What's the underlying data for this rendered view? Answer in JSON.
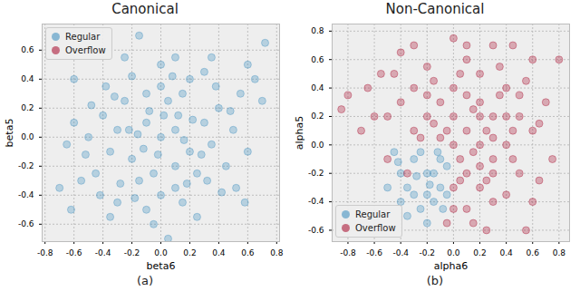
{
  "chart_data": [
    {
      "type": "scatter",
      "title": "Canonical",
      "caption": "(a)",
      "x_label": "beta6",
      "y_label": "beta5",
      "xlim": [
        -0.82,
        0.82
      ],
      "ylim": [
        -0.72,
        0.78
      ],
      "xticks": [
        -0.8,
        -0.6,
        -0.4,
        -0.2,
        {
          "value": 0,
          "label": "0.0"
        },
        0.2,
        0.4,
        0.6,
        0.8
      ],
      "yticks": [
        -0.6,
        -0.4,
        -0.2,
        {
          "value": 0,
          "label": "0.0"
        },
        0.2,
        0.4,
        0.6
      ],
      "grid": true,
      "legend": "upper left",
      "marker": "circle",
      "series": [
        {
          "name": "Regular",
          "color": "#348ABD",
          "x": [
            0.0,
            0.1,
            -0.1,
            0.2,
            -0.2,
            0.05,
            -0.05,
            0.3,
            -0.3,
            0.15,
            -0.15,
            0.25,
            -0.25,
            0.35,
            -0.35,
            0.0,
            0.0,
            0.4,
            -0.4,
            0.45,
            -0.45,
            0.2,
            -0.2,
            0.15,
            -0.1,
            0.5,
            -0.5,
            0.55,
            -0.55,
            0.3,
            -0.3,
            0.6,
            -0.6,
            0.1,
            -0.05,
            0.65,
            -0.65,
            0.7,
            -0.7,
            0.72,
            -0.15,
            0.05,
            0.1,
            -0.08,
            0.22,
            -0.28,
            0.38,
            -0.38,
            0.42,
            -0.42,
            0.12,
            -0.12,
            0.28,
            -0.22,
            0.18,
            -0.32,
            0.08,
            -0.18,
            0.48,
            -0.48,
            0.52,
            -0.52,
            0.35,
            -0.25,
            0.25,
            -0.35,
            0.6,
            -0.6,
            0.58,
            -0.62,
            0.0,
            0.02,
            -0.02,
            0.16,
            -0.16,
            0.32,
            -0.1,
            0.1
          ],
          "y": [
            0.0,
            0.05,
            0.1,
            -0.1,
            -0.15,
            0.25,
            -0.25,
            0.1,
            0.05,
            0.3,
            -0.3,
            -0.25,
            0.25,
            -0.05,
            -0.1,
            0.35,
            -0.4,
            0.2,
            0.15,
            -0.2,
            -0.25,
            0.4,
            0.42,
            -0.45,
            -0.5,
            0.05,
            0.0,
            0.3,
            -0.3,
            0.45,
            -0.45,
            -0.1,
            0.1,
            0.55,
            -0.6,
            0.4,
            -0.05,
            0.25,
            -0.35,
            0.65,
            0.7,
            -0.7,
            -0.2,
            0.18,
            0.12,
            -0.32,
            0.35,
            0.35,
            -0.38,
            -0.4,
            0.15,
            -0.08,
            -0.12,
            0.05,
            -0.32,
            0.28,
            0.42,
            -0.42,
            0.18,
            0.22,
            -0.35,
            -0.12,
            0.55,
            0.55,
            -0.55,
            -0.55,
            0.5,
            0.4,
            -0.45,
            -0.5,
            0.5,
            0.15,
            -0.12,
            -0.02,
            0.02,
            -0.3,
            0.3,
            -0.35
          ]
        },
        {
          "name": "Overflow",
          "color": "#A60628",
          "x": [],
          "y": []
        }
      ]
    },
    {
      "type": "scatter",
      "title": "Non-Canonical",
      "caption": "(b)",
      "x_label": "alpha6",
      "y_label": "alpha5",
      "xlim": [
        -0.92,
        0.88
      ],
      "ylim": [
        -0.68,
        0.85
      ],
      "xticks": [
        -0.8,
        -0.6,
        -0.4,
        -0.2,
        {
          "value": 0,
          "label": "0.0"
        },
        0.2,
        0.4,
        0.6,
        0.8
      ],
      "yticks": [
        -0.6,
        -0.4,
        -0.2,
        {
          "value": 0,
          "label": "0.0"
        },
        0.2,
        0.4,
        0.6,
        0.8
      ],
      "grid": true,
      "legend": "lower left",
      "marker": "circle",
      "series": [
        {
          "name": "Regular",
          "color": "#348ABD",
          "x": [
            -0.1,
            -0.2,
            -0.3,
            -0.1,
            -0.2,
            -0.35,
            -0.25,
            -0.4,
            -0.15,
            -0.05,
            -0.3,
            -0.15,
            -0.4,
            -0.05,
            -0.25,
            -0.45,
            -0.2,
            -0.35,
            -0.5,
            -0.12,
            -0.28,
            -0.08,
            -0.42,
            -0.18
          ],
          "y": [
            -0.1,
            -0.2,
            -0.1,
            -0.3,
            -0.35,
            -0.3,
            -0.45,
            -0.2,
            -0.2,
            -0.15,
            -0.35,
            -0.4,
            -0.4,
            -0.35,
            -0.05,
            -0.05,
            -0.55,
            -0.5,
            -0.3,
            -0.05,
            -0.22,
            -0.45,
            -0.12,
            -0.28
          ]
        },
        {
          "name": "Overflow",
          "color": "#A60628",
          "x": [
            0.0,
            0.1,
            0.2,
            0.0,
            0.3,
            0.2,
            -0.1,
            0.3,
            0.4,
            0.0,
            0.1,
            0.2,
            -0.2,
            -0.3,
            0.4,
            0.5,
            0.2,
            -0.3,
            0.5,
            0.3,
            0.1,
            -0.4,
            0.6,
            0.1,
            -0.2,
            0.55,
            0.4,
            0.15,
            -0.5,
            -0.55,
            -0.4,
            0.3,
            0.7,
            0.75,
            0.6,
            0.0,
            0.05,
            -0.05,
            0.25,
            0.15,
            -0.15,
            0.35,
            0.45,
            0.1,
            0.05,
            0.3,
            -0.25,
            -0.1,
            0.2,
            0.45,
            0.6,
            0.0,
            -0.8,
            -0.85,
            -0.65,
            -0.7,
            0.8,
            0.55,
            0.25,
            -0.05,
            0.65,
            -0.3,
            0.45,
            0.1,
            -0.45,
            0.35,
            0.5,
            -0.6,
            0.0,
            -0.15,
            0.15,
            0.25,
            0.4,
            0.2,
            -0.35,
            -0.5,
            0.65,
            -0.2,
            0.05,
            0.3
          ],
          "y": [
            0.0,
            0.1,
            0.0,
            0.2,
            0.2,
            0.3,
            0.3,
            -0.1,
            0.0,
            0.4,
            -0.2,
            -0.3,
            0.2,
            0.1,
            0.4,
            0.2,
            0.5,
            0.4,
            -0.2,
            -0.4,
            -0.45,
            0.3,
            0.1,
            0.6,
            0.55,
            0.45,
            -0.35,
            -0.55,
            0.2,
            0.5,
            0.65,
            0.7,
            0.3,
            -0.1,
            -0.4,
            -0.3,
            -0.1,
            0.1,
            0.1,
            0.25,
            0.45,
            0.35,
            0.1,
            0.35,
            -0.25,
            0.05,
            0.05,
            0.05,
            -0.15,
            -0.1,
            0.6,
            0.75,
            0.35,
            0.25,
            0.4,
            0.1,
            0.6,
            -0.6,
            -0.6,
            -0.55,
            -0.25,
            0.7,
            0.7,
            0.7,
            0.5,
            0.55,
            0.35,
            0.2,
            -0.45,
            0.15,
            -0.05,
            -0.25,
            0.2,
            0.2,
            -0.2,
            -0.1,
            0.15,
            0.35,
            0.5,
            -0.2
          ]
        }
      ]
    }
  ]
}
